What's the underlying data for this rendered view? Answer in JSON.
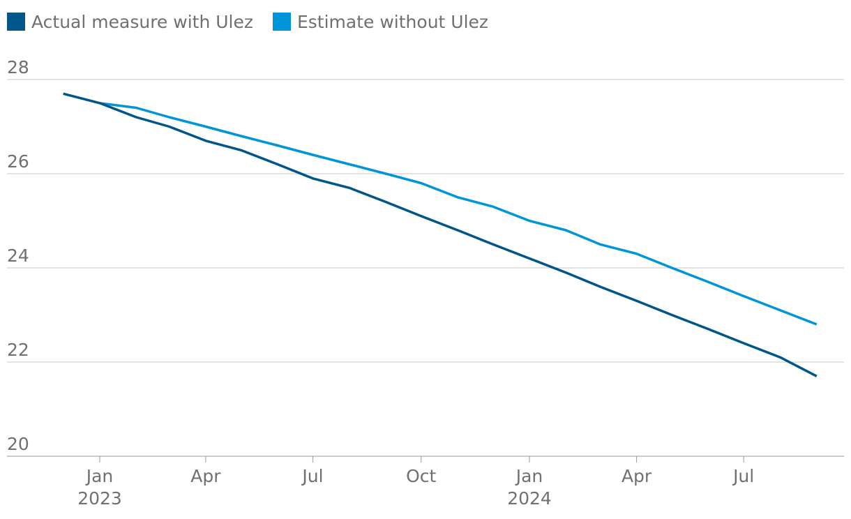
{
  "chart_data": {
    "type": "line",
    "title": "",
    "xlabel": "",
    "ylabel": "",
    "ylim": [
      20,
      28
    ],
    "yticks": [
      20,
      22,
      24,
      26,
      28
    ],
    "grid": true,
    "legend_position": "top-left",
    "x_ticks": [
      {
        "date": "2023-01-01",
        "label": "Jan",
        "sublabel": "2023"
      },
      {
        "date": "2023-04-01",
        "label": "Apr",
        "sublabel": ""
      },
      {
        "date": "2023-07-01",
        "label": "Jul",
        "sublabel": ""
      },
      {
        "date": "2023-10-01",
        "label": "Oct",
        "sublabel": ""
      },
      {
        "date": "2024-01-01",
        "label": "Jan",
        "sublabel": "2024"
      },
      {
        "date": "2024-04-01",
        "label": "Apr",
        "sublabel": ""
      },
      {
        "date": "2024-07-01",
        "label": "Jul",
        "sublabel": ""
      }
    ],
    "series": [
      {
        "name": "Actual measure with Ulez",
        "color": "#005689",
        "points": [
          {
            "x": "2022-12-01",
            "y": 27.7
          },
          {
            "x": "2023-01-01",
            "y": 27.5
          },
          {
            "x": "2023-02-01",
            "y": 27.2
          },
          {
            "x": "2023-03-01",
            "y": 27.0
          },
          {
            "x": "2023-04-01",
            "y": 26.7
          },
          {
            "x": "2023-05-01",
            "y": 26.5
          },
          {
            "x": "2023-06-01",
            "y": 26.2
          },
          {
            "x": "2023-07-01",
            "y": 25.9
          },
          {
            "x": "2023-08-01",
            "y": 25.7
          },
          {
            "x": "2023-09-01",
            "y": 25.4
          },
          {
            "x": "2023-10-01",
            "y": 25.1
          },
          {
            "x": "2023-11-01",
            "y": 24.8
          },
          {
            "x": "2023-12-01",
            "y": 24.5
          },
          {
            "x": "2024-01-01",
            "y": 24.2
          },
          {
            "x": "2024-02-01",
            "y": 23.9
          },
          {
            "x": "2024-03-01",
            "y": 23.6
          },
          {
            "x": "2024-04-01",
            "y": 23.3
          },
          {
            "x": "2024-05-01",
            "y": 23.0
          },
          {
            "x": "2024-06-01",
            "y": 22.7
          },
          {
            "x": "2024-07-01",
            "y": 22.4
          },
          {
            "x": "2024-08-01",
            "y": 22.1
          },
          {
            "x": "2024-09-01",
            "y": 21.7
          }
        ]
      },
      {
        "name": "Estimate without Ulez",
        "color": "#0094d9",
        "points": [
          {
            "x": "2023-01-01",
            "y": 27.5
          },
          {
            "x": "2023-02-01",
            "y": 27.4
          },
          {
            "x": "2023-03-01",
            "y": 27.2
          },
          {
            "x": "2023-04-01",
            "y": 27.0
          },
          {
            "x": "2023-05-01",
            "y": 26.8
          },
          {
            "x": "2023-06-01",
            "y": 26.6
          },
          {
            "x": "2023-07-01",
            "y": 26.4
          },
          {
            "x": "2023-08-01",
            "y": 26.2
          },
          {
            "x": "2023-09-01",
            "y": 26.0
          },
          {
            "x": "2023-10-01",
            "y": 25.8
          },
          {
            "x": "2023-11-01",
            "y": 25.5
          },
          {
            "x": "2023-12-01",
            "y": 25.3
          },
          {
            "x": "2024-01-01",
            "y": 25.0
          },
          {
            "x": "2024-02-01",
            "y": 24.8
          },
          {
            "x": "2024-03-01",
            "y": 24.5
          },
          {
            "x": "2024-04-01",
            "y": 24.3
          },
          {
            "x": "2024-05-01",
            "y": 24.0
          },
          {
            "x": "2024-06-01",
            "y": 23.7
          },
          {
            "x": "2024-07-01",
            "y": 23.4
          },
          {
            "x": "2024-08-01",
            "y": 23.1
          },
          {
            "x": "2024-09-01",
            "y": 22.8
          }
        ]
      }
    ]
  }
}
